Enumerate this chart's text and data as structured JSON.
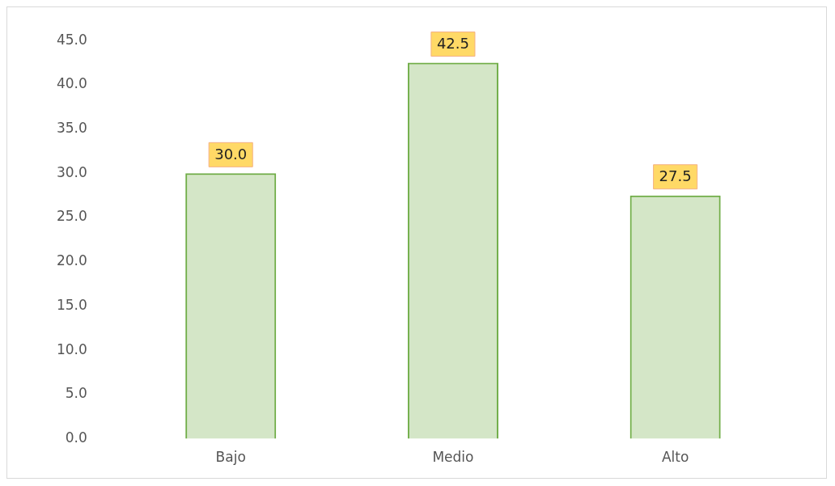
{
  "chart_data": {
    "type": "bar",
    "categories": [
      "Bajo",
      "Medio",
      "Alto"
    ],
    "values": [
      30.0,
      42.5,
      27.5
    ],
    "color": "#70ad47",
    "value_labels": [
      "30.0",
      "42.5",
      "27.5"
    ],
    "ylim": [
      0,
      45
    ],
    "yticks": [
      {
        "value": 0,
        "label": "0.0"
      },
      {
        "value": 5,
        "label": "5.0"
      },
      {
        "value": 10,
        "label": "10.0"
      },
      {
        "value": 15,
        "label": "15.0"
      },
      {
        "value": 20,
        "label": "20.0"
      },
      {
        "value": 25,
        "label": "25.0"
      },
      {
        "value": 30,
        "label": "30.0"
      },
      {
        "value": 35,
        "label": "35.0"
      },
      {
        "value": 40,
        "label": "40.0"
      },
      {
        "value": 45,
        "label": "45.0"
      }
    ],
    "grid": false,
    "legend": false
  }
}
